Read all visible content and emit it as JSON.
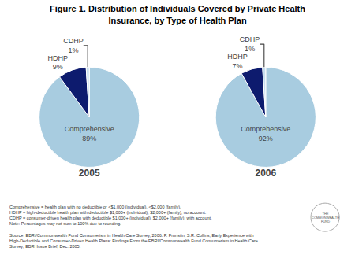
{
  "chart_data": {
    "type": "pie",
    "title": "Figure 1. Distribution of Individuals Covered by Private Health\nInsurance, by Type of Health Plan",
    "categories": [
      "Comprehensive",
      "HDHP",
      "CDHP"
    ],
    "colors": [
      "#a8cce0",
      "#0d1b6e",
      "#c8dff0"
    ],
    "series": [
      {
        "name": "2005",
        "values": [
          89,
          9,
          1
        ],
        "value_labels": [
          "89%",
          "9%",
          "1%"
        ]
      },
      {
        "name": "2006",
        "values": [
          92,
          7,
          1
        ],
        "value_labels": [
          "92%",
          "7%",
          "1%"
        ]
      }
    ],
    "data_labels": true,
    "annotations": [
      "Comprehensive = health plan with no deductible or <$1,000 (individual), <$2,000 (family).",
      "HDHP = high-deductible health plan with deductible $1,000+ (individual), $2,000+ (family); no account.",
      "CDHP = consumer-driven health plan with deductible $1,000+ (individual), $2,000+ (family); with account.",
      "Note: Percentages may not sum to 100% due to rounding."
    ],
    "source": "Source: EBRI/Commonwealth Fund Consumerism in Health Care Survey, 2006. P. Fronstin, S.R. Collins, Early Experience with\nHigh-Deductible and Consumer-Driven Health Plans: Findings From the EBRI/Commonwealth Fund Consumerism in Health Care\nSurvey; EBRI Issue Brief, Dec. 2005.",
    "logo": [
      "THE",
      "COMMONWEALTH",
      "FUND"
    ]
  }
}
